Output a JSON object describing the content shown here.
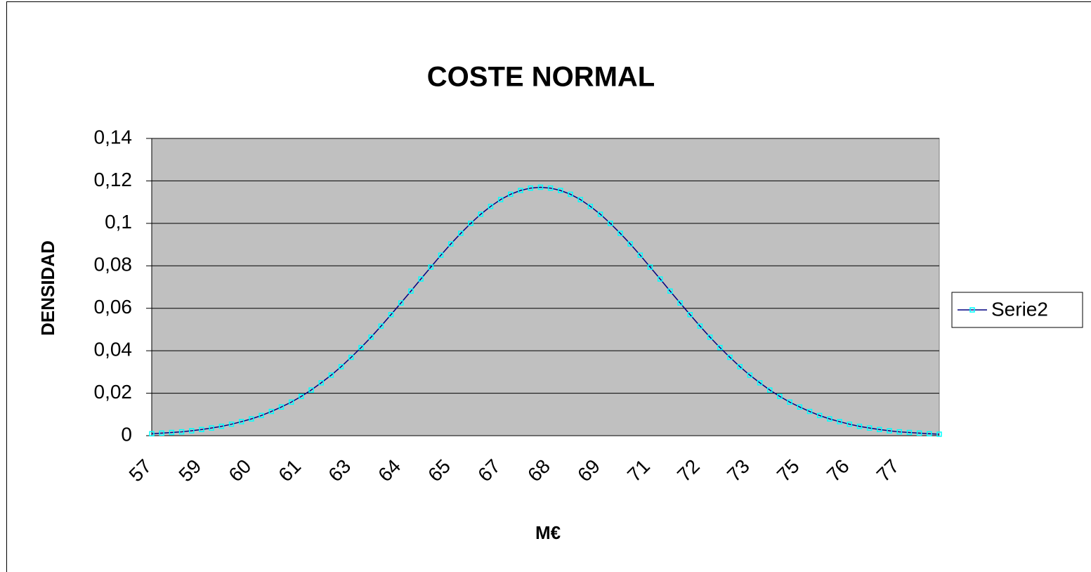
{
  "chart_data": {
    "type": "line",
    "title": "COSTE  NORMAL",
    "x_label": "M€",
    "y_label": "DENSIDAD",
    "categories": [
      57,
      null,
      null,
      null,
      null,
      59,
      null,
      null,
      null,
      null,
      60,
      null,
      null,
      null,
      null,
      61,
      null,
      null,
      null,
      null,
      63,
      null,
      null,
      null,
      null,
      64,
      null,
      null,
      null,
      null,
      65,
      null,
      null,
      null,
      null,
      67,
      null,
      null,
      null,
      null,
      68,
      null,
      null,
      null,
      null,
      69,
      null,
      null,
      null,
      null,
      71,
      null,
      null,
      null,
      null,
      72,
      null,
      null,
      null,
      null,
      73,
      null,
      null,
      null,
      null,
      75,
      null,
      null,
      null,
      null,
      76,
      null,
      null,
      null,
      null,
      77,
      null,
      null,
      null,
      null
    ],
    "series": [
      {
        "name": "Serie2",
        "color": "#000080",
        "marker_color": "#00ffff",
        "values": [
          0.0009,
          0.0012,
          0.0015,
          0.0018,
          0.0023,
          0.0029,
          0.0036,
          0.0044,
          0.0054,
          0.0066,
          0.0079,
          0.0095,
          0.0114,
          0.0135,
          0.0158,
          0.0185,
          0.0215,
          0.0249,
          0.0285,
          0.0325,
          0.0369,
          0.0415,
          0.0464,
          0.0516,
          0.057,
          0.0625,
          0.0681,
          0.0738,
          0.0794,
          0.085,
          0.0903,
          0.0953,
          0.1,
          0.1043,
          0.108,
          0.1112,
          0.1137,
          0.1155,
          0.1166,
          0.117,
          0.1166,
          0.1155,
          0.1137,
          0.1112,
          0.108,
          0.1043,
          0.1,
          0.0953,
          0.0903,
          0.085,
          0.0794,
          0.0738,
          0.0681,
          0.0625,
          0.057,
          0.0516,
          0.0464,
          0.0415,
          0.0369,
          0.0325,
          0.0285,
          0.0249,
          0.0215,
          0.0185,
          0.0158,
          0.0135,
          0.0114,
          0.0095,
          0.0079,
          0.0066,
          0.0054,
          0.0044,
          0.0036,
          0.0029,
          0.0023,
          0.0018,
          0.0015,
          0.0012,
          0.0009,
          0.0007
        ]
      }
    ],
    "ylim": [
      0,
      0.14
    ],
    "yticks": [
      0,
      {
        "value": 0.02,
        "label": "0,02"
      },
      {
        "value": 0.04,
        "label": "0,04"
      },
      {
        "value": 0.06,
        "label": "0,06"
      },
      {
        "value": 0.08,
        "label": "0,08"
      },
      {
        "value": 0.1,
        "label": "0,1"
      },
      {
        "value": 0.12,
        "label": "0,12"
      },
      {
        "value": 0.14,
        "label": "0,14"
      }
    ],
    "grid": true,
    "plot_background": "#c0c0c0",
    "legend": "right"
  }
}
